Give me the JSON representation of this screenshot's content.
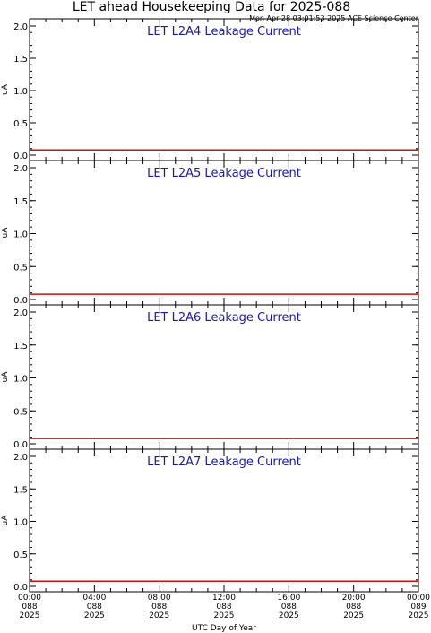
{
  "header": {
    "title": "LET ahead Housekeeping Data for 2025-088",
    "timestamp": "Mon Apr 28 03:01:53 2025 ACE Science Center"
  },
  "xlabel": "UTC Day of Year",
  "x_ticks": [
    {
      "time": "00:00",
      "doy": "088",
      "year": "2025"
    },
    {
      "time": "04:00",
      "doy": "088",
      "year": "2025"
    },
    {
      "time": "08:00",
      "doy": "088",
      "year": "2025"
    },
    {
      "time": "12:00",
      "doy": "088",
      "year": "2025"
    },
    {
      "time": "16:00",
      "doy": "088",
      "year": "2025"
    },
    {
      "time": "20:00",
      "doy": "088",
      "year": "2025"
    },
    {
      "time": "00:00",
      "doy": "089",
      "year": "2025"
    }
  ],
  "colors": {
    "axes": "#000000",
    "panel_title": "#1a1aa0",
    "series_line": "#cc1111"
  },
  "chart_data": [
    {
      "type": "line",
      "title": "LET L2A4 Leakage Current",
      "ylabel": "uA",
      "ylim": [
        0,
        2.0
      ],
      "y_tick_labels": [
        "0.0",
        "0.5",
        "1.0",
        "1.5",
        "2.0"
      ],
      "x_hours": [
        0,
        24
      ],
      "series": [
        {
          "values": [
            0.08,
            0.08
          ]
        }
      ]
    },
    {
      "type": "line",
      "title": "LET L2A5 Leakage Current",
      "ylabel": "uA",
      "ylim": [
        0,
        2.0
      ],
      "y_tick_labels": [
        "0.0",
        "0.5",
        "1.0",
        "1.5",
        "2.0"
      ],
      "x_hours": [
        0,
        24
      ],
      "series": [
        {
          "values": [
            0.08,
            0.08
          ]
        }
      ]
    },
    {
      "type": "line",
      "title": "LET L2A6 Leakage Current",
      "ylabel": "uA",
      "ylim": [
        0,
        2.0
      ],
      "y_tick_labels": [
        "0.0",
        "0.5",
        "1.0",
        "1.5",
        "2.0"
      ],
      "x_hours": [
        0,
        24
      ],
      "series": [
        {
          "values": [
            0.08,
            0.08
          ]
        }
      ]
    },
    {
      "type": "line",
      "title": "LET L2A7 Leakage Current",
      "ylabel": "uA",
      "ylim": [
        0,
        2.0
      ],
      "y_tick_labels": [
        "0.0",
        "0.5",
        "1.0",
        "1.5",
        "2.0"
      ],
      "x_hours": [
        0,
        24
      ],
      "series": [
        {
          "values": [
            0.08,
            0.08
          ]
        }
      ]
    }
  ]
}
